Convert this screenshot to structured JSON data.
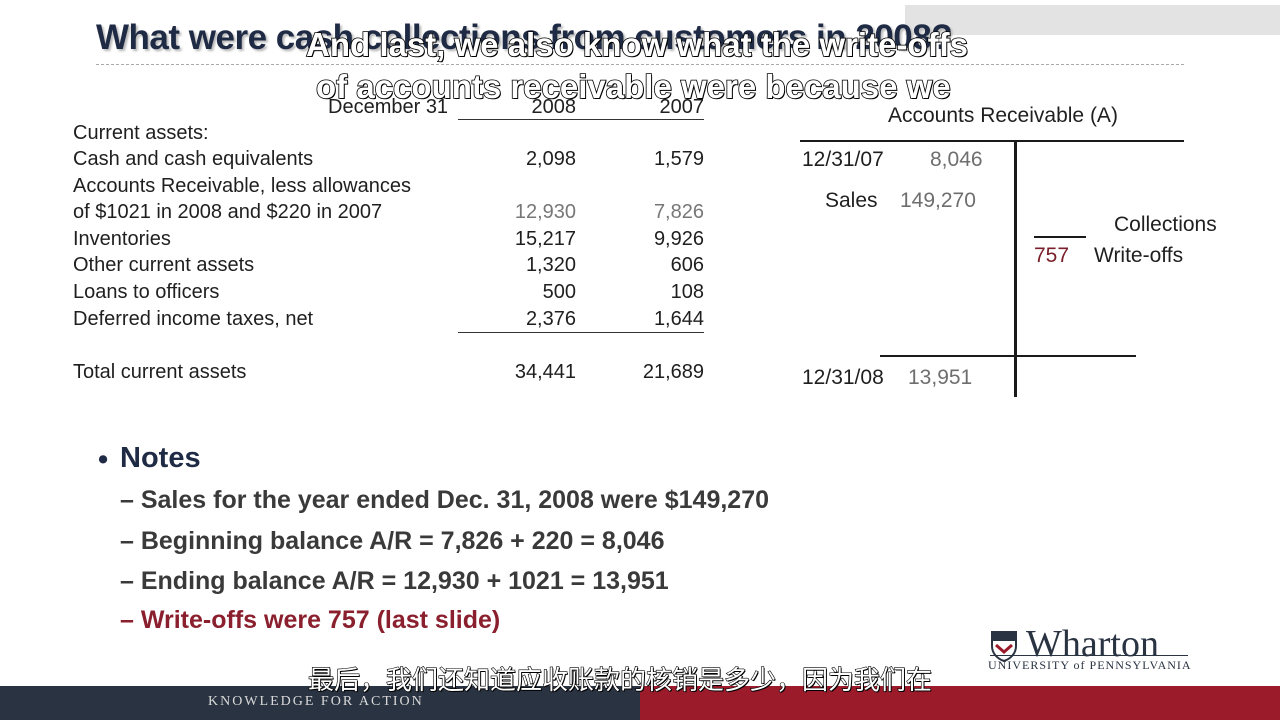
{
  "slide": {
    "title": "What were cash collections from customers in 2008?",
    "caption_line1": "And last, we also know what the write-offs",
    "caption_line2": "of accounts receivable were because we",
    "subtitle_zh": "最后，我们还知道应收账款的核销是多少，因为我们在"
  },
  "balance_sheet": {
    "header": {
      "label": "December 31",
      "y1": "2008",
      "y2": "2007"
    },
    "section": "Current assets:",
    "rows": [
      {
        "label": "Cash and cash equivalents",
        "v2008": "2,098",
        "v2007": "1,579"
      },
      {
        "label": "Accounts Receivable, less allowances",
        "v2008": "",
        "v2007": ""
      },
      {
        "label": "of $1021 in 2008 and $220 in 2007",
        "v2008": "12,930",
        "v2007": "7,826"
      },
      {
        "label": "Inventories",
        "v2008": "15,217",
        "v2007": "9,926"
      },
      {
        "label": "Other current assets",
        "v2008": "1,320",
        "v2007": "606"
      },
      {
        "label": "Loans to officers",
        "v2008": "500",
        "v2007": "108"
      },
      {
        "label": "Deferred income taxes, net",
        "v2008": "2,376",
        "v2007": "1,644"
      }
    ],
    "total": {
      "label": "Total current assets",
      "v2008": "34,441",
      "v2007": "21,689"
    }
  },
  "t_account": {
    "title": "Accounts Receivable (A)",
    "begin_date": "12/31/07",
    "begin_value": "8,046",
    "sales_label": "Sales",
    "sales_value": "149,270",
    "collections_label": "Collections",
    "writeoff_value": "757",
    "writeoff_label": "Write-offs",
    "end_date": "12/31/08",
    "end_value": "13,951"
  },
  "notes": {
    "heading": "Notes",
    "items": [
      "– Sales for the year ended Dec. 31, 2008 were $149,270",
      "– Beginning balance A/R = 7,826 + 220 = 8,046",
      "– Ending balance A/R = 12,930 + 1021 = 13,951",
      "– Write-offs were 757 (last slide)"
    ]
  },
  "footer": {
    "tagline": "KNOWLEDGE FOR ACTION",
    "logo_name": "Wharton",
    "logo_sub": "UNIVERSITY of PENNSYLVANIA"
  },
  "colors": {
    "navy": "#2a3342",
    "maroon": "#9b1b2b",
    "writeoff": "#7a1f2a"
  }
}
